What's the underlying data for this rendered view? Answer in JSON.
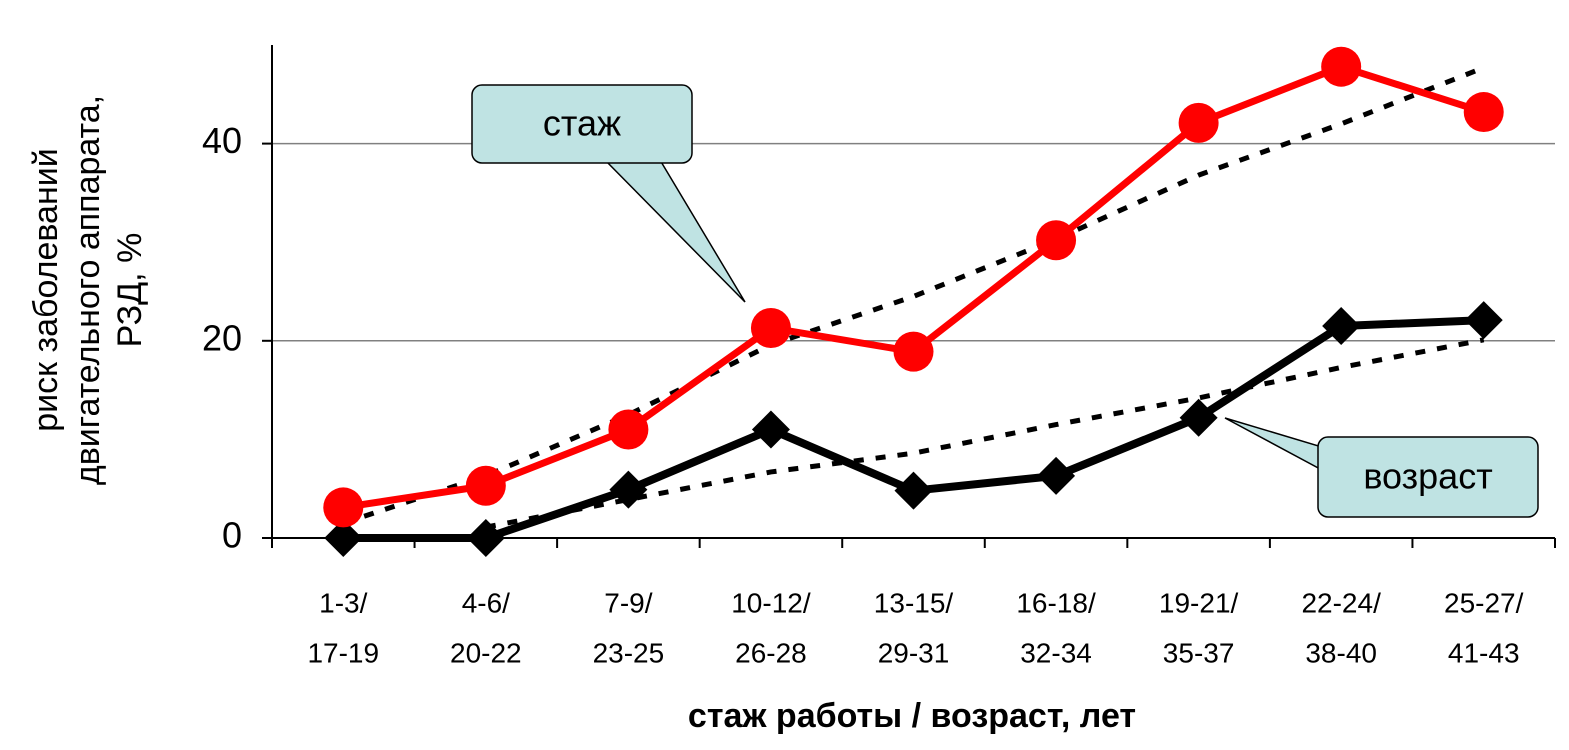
{
  "chart_data": {
    "type": "line",
    "ylabel": [
      "риск заболеваний",
      "двигательного аппарата,",
      "РЗД, %"
    ],
    "xlabel": "стаж работы / возраст, лет",
    "categories": [
      [
        "1-3/",
        "17-19"
      ],
      [
        "4-6/",
        "20-22"
      ],
      [
        "7-9/",
        "23-25"
      ],
      [
        "10-12/",
        "26-28"
      ],
      [
        "13-15/",
        "29-31"
      ],
      [
        "16-18/",
        "32-34"
      ],
      [
        "19-21/",
        "35-37"
      ],
      [
        "22-24/",
        "38-40"
      ],
      [
        "25-27/",
        "41-43"
      ]
    ],
    "series": [
      {
        "name": "стаж",
        "color": "#ff0000",
        "marker": "circle",
        "values": [
          3.1,
          5.3,
          11,
          21.3,
          18.9,
          30.2,
          42.1,
          47.8,
          43.2
        ]
      },
      {
        "name": "возраст",
        "color": "#000000",
        "marker": "diamond",
        "values": [
          0,
          0,
          4.9,
          11,
          4.8,
          6.3,
          12.2,
          21.5,
          22.1
        ]
      },
      {
        "color": "#000000",
        "style": "dotted",
        "values": [
          1.5,
          6.3,
          12.5,
          19.6,
          24.5,
          30.3,
          36.8,
          42,
          47.7
        ]
      },
      {
        "color": "#000000",
        "style": "dotted",
        "values": [
          null,
          1.1,
          3.9,
          6.7,
          8.6,
          11.5,
          14.2,
          17.3,
          20.1
        ]
      }
    ],
    "ylim": [
      0,
      50
    ],
    "yticks": [
      0,
      20,
      40
    ],
    "grid": true
  }
}
